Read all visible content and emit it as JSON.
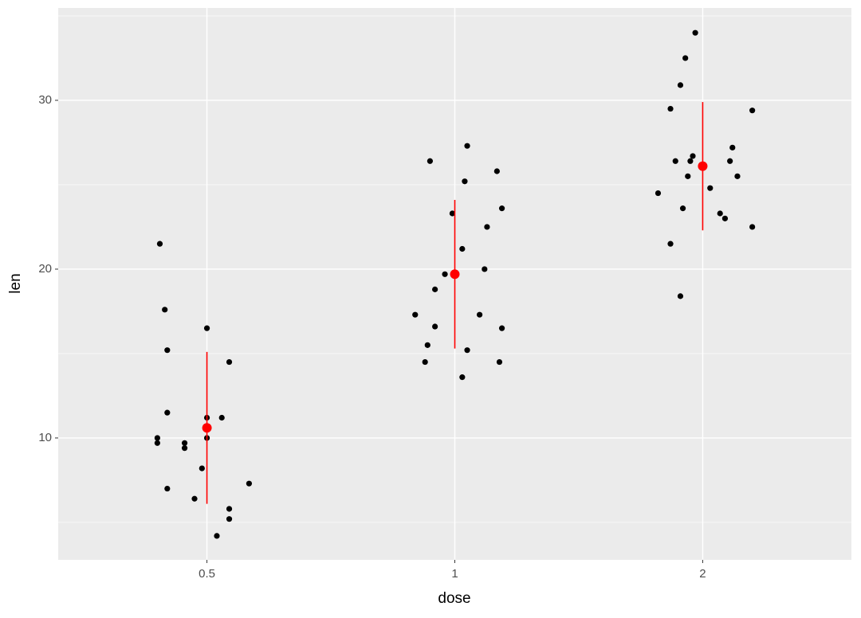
{
  "chart_data": {
    "type": "scatter",
    "x_label": "dose",
    "y_label": "len",
    "xlim": [
      0.4,
      3.6
    ],
    "xticks": [
      {
        "value": 1,
        "label": "0.5"
      },
      {
        "value": 2,
        "label": "1"
      },
      {
        "value": 3,
        "label": "2"
      }
    ],
    "ylim": [
      2.78,
      35.47
    ],
    "yticks": [
      10,
      20,
      30
    ],
    "y_minor_ticks": [
      5,
      15,
      25,
      35
    ],
    "grid": true,
    "points": {
      "color": "#000000",
      "x": [
        0.81,
        0.83,
        0.84,
        0.84,
        0.8,
        0.8,
        0.91,
        0.91,
        0.84,
        0.95,
        0.98,
        1.0,
        1.0,
        1.0,
        1.06,
        1.09,
        1.17,
        1.09,
        1.09,
        1.04,
        1.9,
        2.05,
        2.04,
        2.17,
        2.19,
        1.99,
        2.13,
        2.03,
        2.12,
        1.96,
        1.92,
        1.84,
        2.1,
        1.92,
        2.19,
        1.89,
        2.05,
        1.88,
        2.18,
        2.03,
        2.97,
        2.93,
        2.91,
        2.87,
        3.2,
        3.12,
        2.96,
        2.95,
        2.89,
        3.11,
        2.94,
        3.14,
        3.03,
        2.82,
        2.92,
        3.07,
        3.09,
        3.2,
        2.87,
        2.91
      ],
      "values": [
        21.5,
        17.6,
        15.2,
        11.5,
        10.0,
        9.7,
        9.7,
        9.4,
        7.0,
        6.4,
        8.2,
        16.5,
        11.2,
        10.0,
        11.2,
        14.5,
        7.3,
        5.8,
        5.2,
        4.2,
        26.4,
        27.3,
        25.2,
        25.8,
        23.6,
        23.3,
        22.5,
        21.2,
        20.0,
        19.7,
        18.8,
        17.3,
        17.3,
        16.6,
        16.5,
        15.5,
        15.2,
        14.5,
        14.5,
        13.6,
        34.0,
        32.5,
        30.9,
        29.5,
        29.4,
        27.2,
        26.7,
        26.4,
        26.4,
        26.4,
        25.5,
        25.5,
        24.8,
        24.5,
        23.6,
        23.3,
        23.0,
        22.5,
        21.5,
        18.4
      ]
    },
    "summary": {
      "color": "#ff0000",
      "x": [
        1,
        2,
        3
      ],
      "values": [
        10.6,
        19.7,
        26.1
      ],
      "errors": [
        4.5,
        4.4,
        3.8
      ]
    }
  }
}
